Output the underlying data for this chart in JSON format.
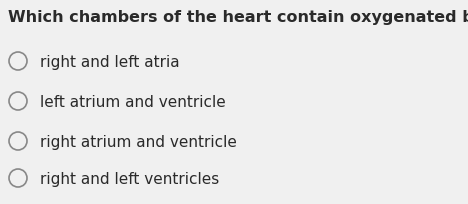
{
  "question": "Which chambers of the heart contain oxygenated blood?",
  "options": [
    "right and left atria",
    "left atrium and ventricle",
    "right atrium and ventricle",
    "right and left ventricles"
  ],
  "background_color": "#f0f0f0",
  "text_color": "#2a2a2a",
  "question_fontsize": 11.5,
  "option_fontsize": 11.0,
  "circle_color": "#888888",
  "circle_linewidth": 1.2
}
